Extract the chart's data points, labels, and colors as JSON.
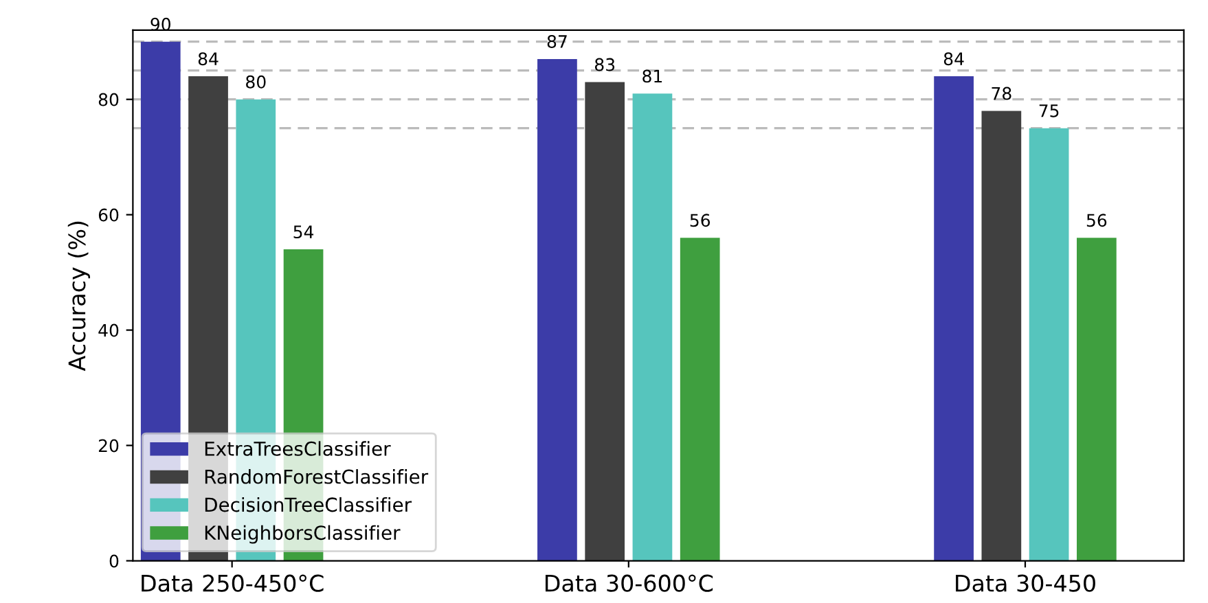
{
  "chart_data": {
    "type": "bar",
    "ylabel": "Accuracy (%)",
    "categories": [
      "Data 250-450°C",
      "Data 30-600°C",
      "Data 30-450"
    ],
    "series": [
      {
        "name": "ExtraTreesClassifier",
        "color": "#3c3ca8",
        "values": [
          90,
          87,
          84
        ]
      },
      {
        "name": "RandomForestClassifier",
        "color": "#404040",
        "values": [
          84,
          83,
          78
        ]
      },
      {
        "name": "DecisionTreeClassifier",
        "color": "#56c5bd",
        "values": [
          80,
          81,
          75
        ]
      },
      {
        "name": "KNeighborsClassifier",
        "color": "#3f9f3f",
        "values": [
          54,
          56,
          56
        ]
      }
    ],
    "ylim": [
      0,
      92
    ],
    "yticks": [
      0,
      20,
      40,
      60,
      80
    ],
    "ref_lines": [
      {
        "axis": "y",
        "value": 90,
        "color": "#bbbbbb",
        "line_style": "dashed"
      },
      {
        "axis": "y",
        "value": 85,
        "color": "#bbbbbb",
        "line_style": "dashed"
      },
      {
        "axis": "y",
        "value": 80,
        "color": "#bbbbbb",
        "line_style": "dashed"
      },
      {
        "axis": "y",
        "value": 75,
        "color": "#bbbbbb",
        "line_style": "dashed"
      }
    ],
    "data_labels": true,
    "legend": "bottom left",
    "grid": false
  }
}
